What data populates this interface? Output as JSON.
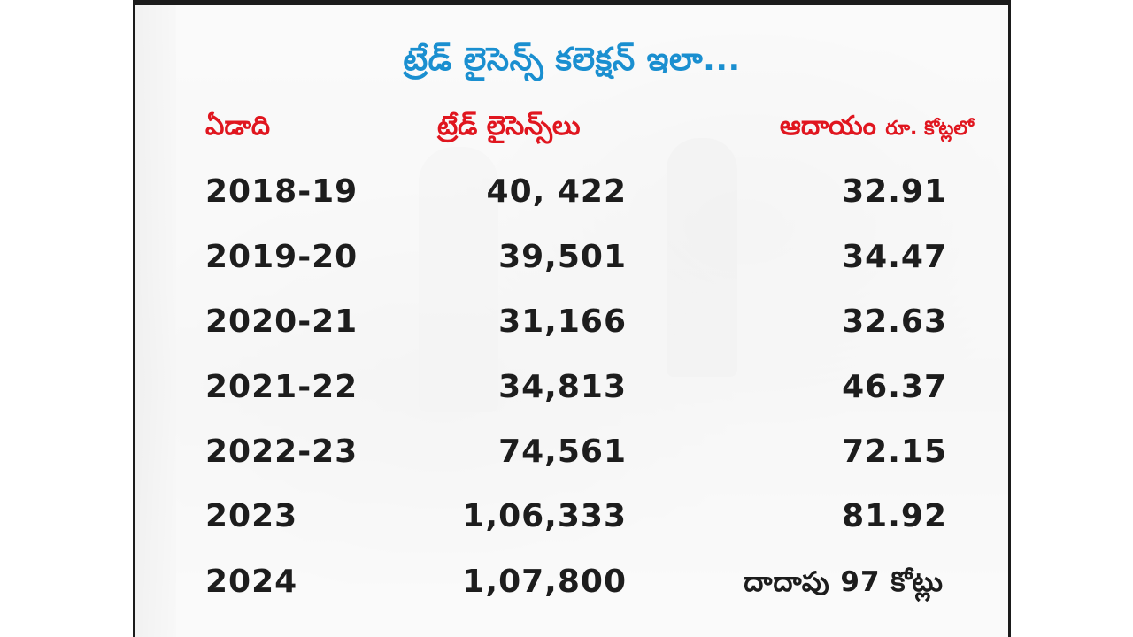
{
  "title": "ట్రేడ్ లైసెన్స్ కలెక్షన్ ఇలా...",
  "headers": {
    "year": "ఏడాది",
    "licenses": "ట్రేడ్ లైసెన్స్‌లు",
    "revenue": "ఆదాయం",
    "revenue_unit": "రూ. కోట్లలో"
  },
  "rows": [
    {
      "year": "2018-19",
      "licenses": "40, 422",
      "revenue": "32.91"
    },
    {
      "year": "2019-20",
      "licenses": "39,501",
      "revenue": "34.47"
    },
    {
      "year": "2020-21",
      "licenses": "31,166",
      "revenue": "32.63"
    },
    {
      "year": "2021-22",
      "licenses": "34,813",
      "revenue": "46.37"
    },
    {
      "year": "2022-23",
      "licenses": "74,561",
      "revenue": "72.15"
    },
    {
      "year": "2023",
      "licenses": "1,06,333",
      "revenue": "81.92"
    },
    {
      "year": "2024",
      "licenses": "1,07,800",
      "revenue": "దాదాపు 97 కోట్లు"
    }
  ],
  "colors": {
    "title": "#1a8fd0",
    "header": "#e0161f",
    "body_text": "#1d1d1d"
  }
}
